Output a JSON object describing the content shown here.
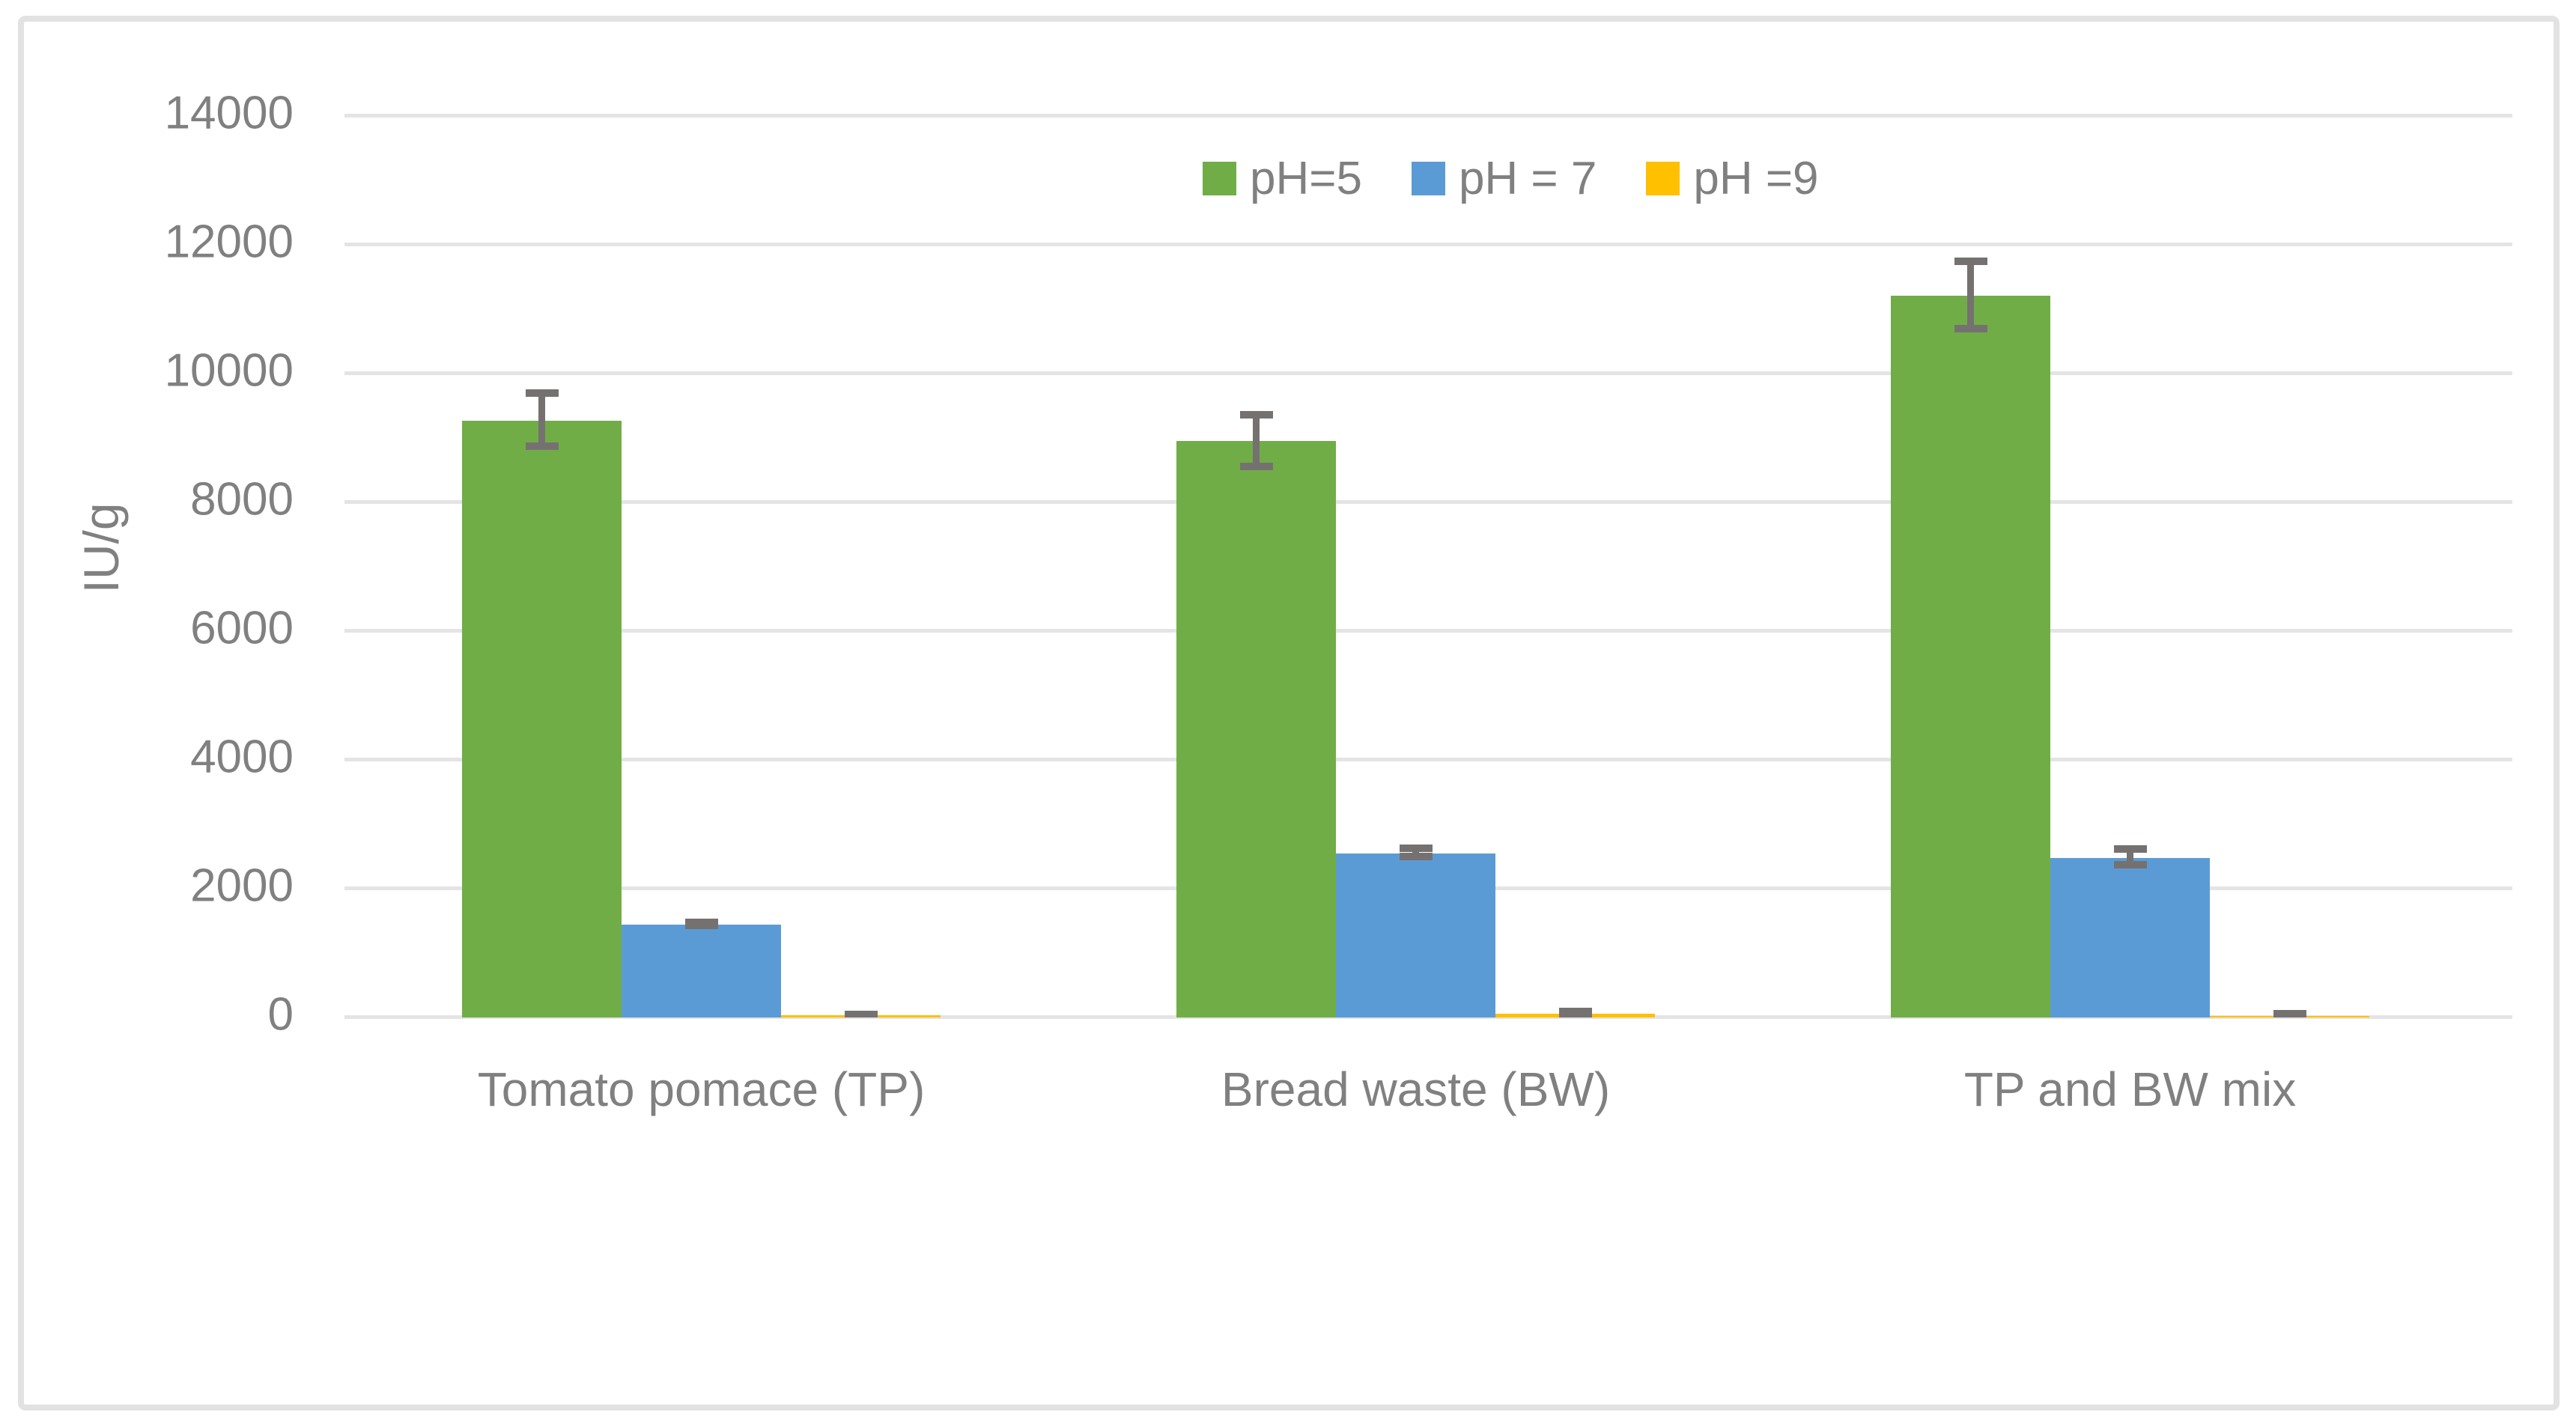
{
  "chart_data": {
    "type": "bar",
    "title": "",
    "xlabel": "",
    "ylabel": "IU/g",
    "ylim": [
      0,
      14000
    ],
    "yticks": [
      0,
      2000,
      4000,
      6000,
      8000,
      10000,
      12000,
      14000
    ],
    "grid": true,
    "legend_position": "top-center",
    "categories": [
      "Tomato pomace (TP)",
      "Bread waste (BW)",
      "TP and BW mix"
    ],
    "series": [
      {
        "name": "pH=5",
        "color": "#70AD47",
        "values": [
          9270,
          8950,
          11210
        ],
        "errors": [
          470,
          460,
          580
        ]
      },
      {
        "name": "pH = 7",
        "color": "#5B9BD5",
        "values": [
          1440,
          2550,
          2480
        ],
        "errors": [
          85,
          120,
          180
        ]
      },
      {
        "name": "pH =9",
        "color": "#FFC000",
        "values": [
          30,
          60,
          15
        ],
        "errors": [
          50,
          80,
          30
        ]
      }
    ],
    "error_bar_color": "#767171",
    "gridline_color": "#e4e4e4",
    "text_color": "#808080"
  }
}
